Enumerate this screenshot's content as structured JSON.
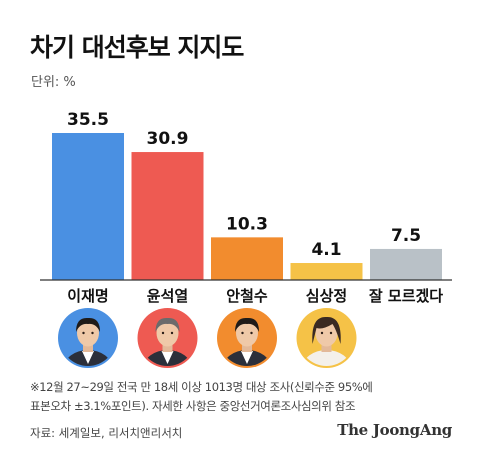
{
  "title": "차기 대선후보 지지도",
  "unit_label": "단위: %",
  "chart_data": {
    "type": "bar",
    "title": "차기 대선후보 지지도",
    "ylabel": "단위: %",
    "ylim": [
      0,
      35.5
    ],
    "categories": [
      "이재명",
      "윤석열",
      "안철수",
      "심상정",
      "잘 모르겠다"
    ],
    "values": [
      35.5,
      30.9,
      10.3,
      4.1,
      7.5
    ],
    "value_labels": [
      "35.5",
      "30.9",
      "10.3",
      "4.1",
      "7.5"
    ],
    "colors": [
      "#4a90e2",
      "#ee5a52",
      "#f28c2e",
      "#f5c247",
      "#b9c1c7"
    ],
    "grid": false,
    "legend": "none"
  },
  "avatars": [
    {
      "name": "이재명",
      "ring_color": "#4a90e2",
      "icon": "portrait-icon"
    },
    {
      "name": "윤석열",
      "ring_color": "#ee5a52",
      "icon": "portrait-icon"
    },
    {
      "name": "안철수",
      "ring_color": "#f28c2e",
      "icon": "portrait-icon"
    },
    {
      "name": "심상정",
      "ring_color": "#f5c247",
      "icon": "portrait-icon"
    }
  ],
  "footnote_line1": "※12월 27~29일 전국 만 18세 이상 1013명 대상 조사(신뢰수준 95%에",
  "footnote_line2": "표본오차 ±3.1%포인트). 자세한 사항은 중앙선거여론조사심의위 참조",
  "source": "자료: 세계일보, 리서치앤리서치",
  "brand": "The JoongAng"
}
